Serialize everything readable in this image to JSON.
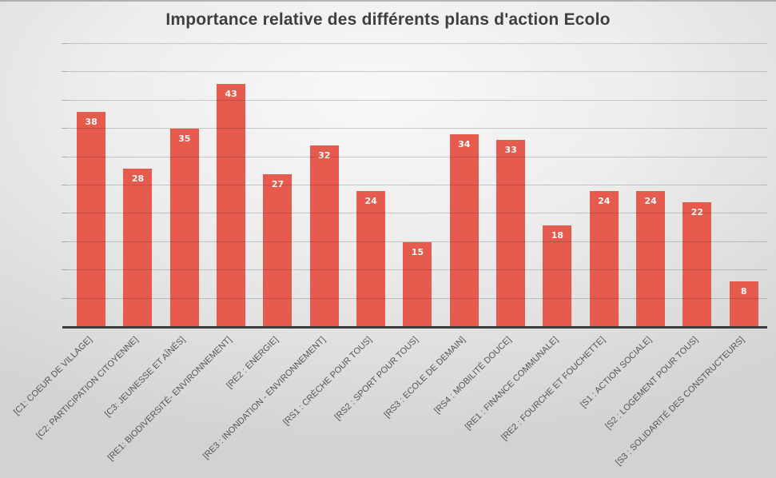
{
  "chart_data": {
    "type": "bar",
    "title": "Importance relative des différents plans d'action Ecolo",
    "categories": [
      "[C1: COEUR DE VILLAGE]",
      "[C2: PARTICIPATION CITOYENNE]",
      "[C3: JEUNESSE ET AÎNÉS]",
      "[RE1: BIODIVERSITÉ- ENVIRONNEMENT]",
      "[RE2 : ENERGIE]",
      "[RE3 : INONDATION - ENVIRONNEMENT]",
      "[RS1 : CRÈCHE POUR TOUS]",
      "[RS2 : SPORT POUR TOUS]",
      "[RS3 : ECOLE DE DEMAIN]",
      "[RS4 : MOBILITÉ DOUCE]",
      "[RE1 : FINANCE COMMUNALE]",
      "[RE2 : FOURCHE ET FOUCHETTE]",
      "[S1 : ACTION SOCIALE]",
      "[S2 : LOGEMENT POUR TOUS]",
      "[S3 : SOLIDARITÉ DES CONSTRUCTEURS]"
    ],
    "values": [
      38,
      28,
      35,
      43,
      27,
      32,
      24,
      15,
      34,
      33,
      18,
      24,
      24,
      22,
      8
    ],
    "xlabel": "",
    "ylabel": "",
    "ylim": [
      0,
      50
    ],
    "gridline_step": 5,
    "grid": true,
    "legend": false,
    "data_label_position": "inside-end",
    "category_label_rotation_deg": -45,
    "colors": {
      "bar": "#e65b4e",
      "data_label": "#fdfbfa",
      "title": "#3f3f3f",
      "category_label": "#555555",
      "axis_line": "#3c3c3c",
      "gridline": "rgba(40,40,40,0.22)"
    }
  }
}
